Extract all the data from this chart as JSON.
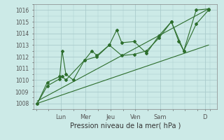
{
  "xlabel": "Pression niveau de la mer( hPa )",
  "bg_color": "#cceae7",
  "grid_color": "#aacccc",
  "line_color": "#2d6e2d",
  "ylim": [
    1007.5,
    1016.5
  ],
  "xlim": [
    -0.1,
    7.3
  ],
  "day_labels": [
    "Lun",
    "Mer",
    "Jeu",
    "Ven",
    "Sam",
    "D"
  ],
  "day_positions": [
    1,
    2,
    3,
    4,
    5,
    6.8
  ],
  "series1_x": [
    0.05,
    0.45,
    0.95,
    1.05,
    1.2,
    1.5,
    1.95,
    2.25,
    2.45,
    2.95,
    3.25,
    3.45,
    3.95,
    4.45,
    4.95,
    5.45,
    5.75,
    5.95,
    6.45,
    6.95
  ],
  "series1_y": [
    1008.0,
    1009.8,
    1010.3,
    1012.5,
    1010.5,
    1010.0,
    1011.7,
    1012.5,
    1012.1,
    1013.0,
    1014.3,
    1013.2,
    1013.3,
    1012.3,
    1013.8,
    1015.0,
    1013.3,
    1012.5,
    1016.0,
    1016.1
  ],
  "series2_x": [
    0.05,
    0.45,
    0.95,
    1.05,
    1.2,
    1.95,
    2.45,
    2.95,
    3.45,
    3.95,
    4.45,
    4.95,
    5.45,
    5.95,
    6.45,
    6.95
  ],
  "series2_y": [
    1008.0,
    1009.5,
    1010.1,
    1010.3,
    1010.0,
    1011.7,
    1012.0,
    1013.0,
    1012.1,
    1012.2,
    1012.5,
    1013.6,
    1015.0,
    1012.5,
    1014.8,
    1016.0
  ],
  "trend1_x": [
    0.05,
    6.95
  ],
  "trend1_y": [
    1008.0,
    1013.0
  ],
  "trend2_x": [
    0.05,
    6.95
  ],
  "trend2_y": [
    1008.2,
    1016.1
  ]
}
